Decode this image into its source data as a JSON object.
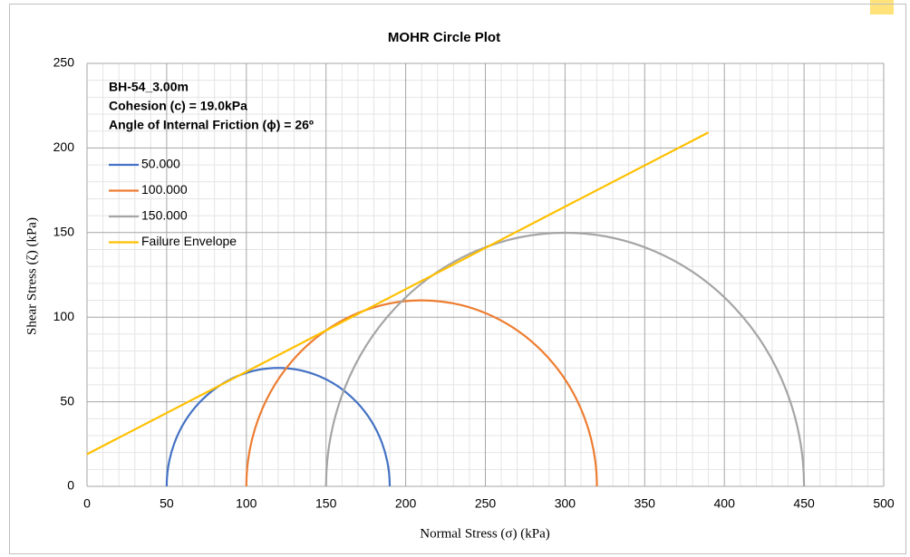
{
  "chart_data": {
    "type": "mohr",
    "title": "MOHR Circle Plot",
    "xlabel": "Normal Stress (σ) (kPa)",
    "ylabel": "Shear Stress (ζ) (kPa)",
    "annotations": [
      "BH-54_3.00m",
      "Cohesion (c) = 19.0kPa",
      "Angle of Internal Friction (ϕ) = 26º"
    ],
    "series": [
      {
        "name": "50.000",
        "color": "#4472c4",
        "kind": "circle",
        "x": [
          50,
          190
        ]
      },
      {
        "name": "100.000",
        "color": "#ed7d31",
        "kind": "circle",
        "x": [
          100,
          320
        ]
      },
      {
        "name": "150.000",
        "color": "#a5a5a5",
        "kind": "circle",
        "x": [
          150,
          450
        ]
      },
      {
        "name": "Failure Envelope",
        "color": "#ffc000",
        "kind": "line",
        "x": [
          0,
          390
        ],
        "values": [
          19,
          209.2
        ]
      }
    ],
    "xlim": [
      0,
      500
    ],
    "xticks": [
      0,
      50,
      100,
      150,
      200,
      250,
      300,
      350,
      400,
      450,
      500
    ],
    "ylim": [
      0,
      250
    ],
    "yticks": [
      0,
      50,
      100,
      150,
      200,
      250
    ],
    "grid": true,
    "minor_grid": true,
    "legend": "upper left"
  }
}
